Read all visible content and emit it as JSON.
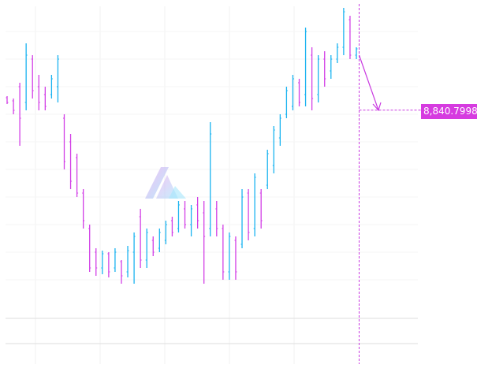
{
  "chart_data": {
    "type": "ohlc",
    "title": "",
    "xlabel": "",
    "ylabel": "",
    "ylim": [
      7560,
      9400
    ],
    "grid": true,
    "colors": {
      "up": "#1ab3f0",
      "down": "#d23fe6",
      "crosshair": "#c93ae0",
      "label_bg": "#d63be0"
    },
    "bars": [
      [
        8904,
        8912,
        8872,
        8880
      ],
      [
        8888,
        8900,
        8820,
        8840
      ],
      [
        8960,
        8980,
        8660,
        8800
      ],
      [
        8880,
        9180,
        8840,
        9120
      ],
      [
        9100,
        9120,
        8900,
        8940
      ],
      [
        8960,
        9020,
        8840,
        8880
      ],
      [
        8920,
        8960,
        8840,
        8860
      ],
      [
        8920,
        9020,
        8900,
        9000
      ],
      [
        8960,
        9120,
        8880,
        9100
      ],
      [
        8800,
        8820,
        8540,
        8580
      ],
      [
        8680,
        8720,
        8440,
        8480
      ],
      [
        8600,
        8620,
        8400,
        8420
      ],
      [
        8420,
        8440,
        8240,
        8280
      ],
      [
        8240,
        8260,
        8020,
        8040
      ],
      [
        8120,
        8140,
        8000,
        8040
      ],
      [
        8040,
        8128,
        8008,
        8112
      ],
      [
        8112,
        8120,
        7992,
        8020
      ],
      [
        8040,
        8140,
        8020,
        8120
      ],
      [
        8072,
        8080,
        7960,
        8000
      ],
      [
        8020,
        8152,
        7992,
        8128
      ],
      [
        8120,
        8220,
        7960,
        8200
      ],
      [
        8300,
        8340,
        8040,
        8080
      ],
      [
        8080,
        8240,
        8040,
        8220
      ],
      [
        8180,
        8200,
        8100,
        8120
      ],
      [
        8140,
        8240,
        8120,
        8220
      ],
      [
        8180,
        8280,
        8160,
        8260
      ],
      [
        8280,
        8300,
        8200,
        8220
      ],
      [
        8240,
        8380,
        8220,
        8360
      ],
      [
        8340,
        8380,
        8240,
        8260
      ],
      [
        8260,
        8360,
        8200,
        8340
      ],
      [
        8360,
        8400,
        8240,
        8280
      ],
      [
        8320,
        8380,
        7960,
        8200
      ],
      [
        8240,
        8780,
        8200,
        8720
      ],
      [
        8340,
        8380,
        8200,
        8240
      ],
      [
        8240,
        8260,
        7980,
        8020
      ],
      [
        8020,
        8220,
        7980,
        8200
      ],
      [
        8180,
        8200,
        7980,
        8020
      ],
      [
        8160,
        8440,
        8140,
        8400
      ],
      [
        8420,
        8440,
        8180,
        8220
      ],
      [
        8240,
        8520,
        8200,
        8500
      ],
      [
        8420,
        8440,
        8240,
        8280
      ],
      [
        8460,
        8640,
        8440,
        8620
      ],
      [
        8560,
        8760,
        8520,
        8740
      ],
      [
        8700,
        8820,
        8660,
        8800
      ],
      [
        8820,
        8960,
        8800,
        8940
      ],
      [
        8860,
        9020,
        8840,
        9000
      ],
      [
        8980,
        9000,
        8860,
        8880
      ],
      [
        8920,
        9260,
        8860,
        9240
      ],
      [
        9120,
        9160,
        8840,
        8900
      ],
      [
        8920,
        9120,
        8880,
        9100
      ],
      [
        9100,
        9140,
        8960,
        9000
      ],
      [
        9040,
        9120,
        9000,
        9100
      ],
      [
        9100,
        9180,
        9080,
        9160
      ],
      [
        9160,
        9360,
        9120,
        9340
      ],
      [
        9300,
        9320,
        9100,
        9120
      ],
      [
        9120,
        9160,
        9100,
        9152
      ]
    ],
    "projection_label": "8,840.7998",
    "projection_value": 8840.7998
  }
}
